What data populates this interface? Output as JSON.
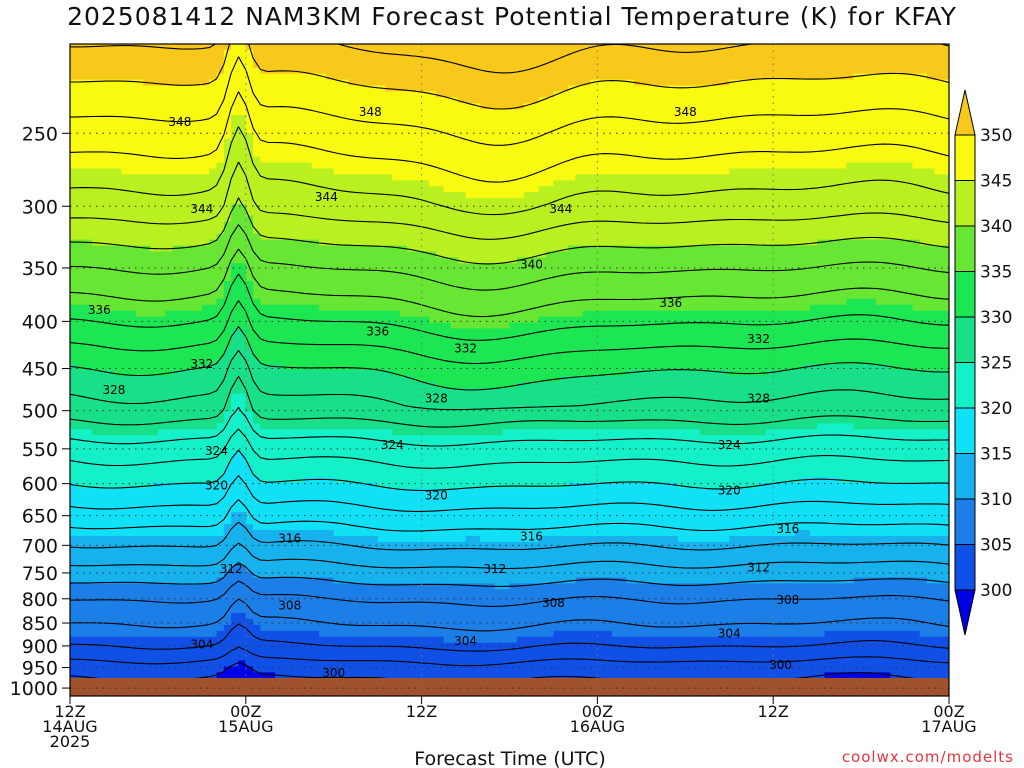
{
  "title": "2025081412 NAM3KM Forecast Potential Temperature (K) for KFAY",
  "watermark": "coolwx.com/modelts",
  "chart_data": {
    "type": "heatmap",
    "title": "2025081412 NAM3KM Forecast Potential Temperature (K) for KFAY",
    "xlabel": "Forecast Time (UTC)",
    "ylabel": "",
    "x_range_hours": [
      0,
      60
    ],
    "x_ticks": [
      {
        "hour": 0,
        "lines": [
          "12Z",
          "14AUG",
          "2025"
        ]
      },
      {
        "hour": 12,
        "lines": [
          "00Z",
          "15AUG"
        ]
      },
      {
        "hour": 24,
        "lines": [
          "12Z"
        ]
      },
      {
        "hour": 36,
        "lines": [
          "00Z",
          "16AUG"
        ]
      },
      {
        "hour": 48,
        "lines": [
          "12Z"
        ]
      },
      {
        "hour": 60,
        "lines": [
          "00Z",
          "17AUG"
        ]
      }
    ],
    "y_ticks": [
      250,
      300,
      350,
      400,
      450,
      500,
      550,
      600,
      650,
      700,
      750,
      800,
      850,
      900,
      950,
      1000
    ],
    "y_range_hpa": [
      1020,
      200
    ],
    "y_scale": "log",
    "grid": true,
    "colorbar": {
      "ticks": [
        300,
        305,
        310,
        315,
        320,
        325,
        330,
        335,
        340,
        345,
        350
      ],
      "min": 295,
      "max": 355,
      "colors": [
        "#0000e6",
        "#1050e6",
        "#1c7fe8",
        "#17b2ee",
        "#11e1f6",
        "#14f0c8",
        "#18e088",
        "#1ce652",
        "#68e634",
        "#b8f020",
        "#fafa10",
        "#f8c81a"
      ],
      "extend": "both"
    },
    "profiles": [
      {
        "p": 1000,
        "theta": 299
      },
      {
        "p": 950,
        "theta": 301
      },
      {
        "p": 900,
        "theta": 304
      },
      {
        "p": 850,
        "theta": 306
      },
      {
        "p": 800,
        "theta": 308
      },
      {
        "p": 750,
        "theta": 311
      },
      {
        "p": 700,
        "theta": 314
      },
      {
        "p": 650,
        "theta": 317
      },
      {
        "p": 600,
        "theta": 320
      },
      {
        "p": 550,
        "theta": 323
      },
      {
        "p": 500,
        "theta": 327
      },
      {
        "p": 450,
        "theta": 330
      },
      {
        "p": 400,
        "theta": 334
      },
      {
        "p": 350,
        "theta": 338
      },
      {
        "p": 300,
        "theta": 343
      },
      {
        "p": 250,
        "theta": 347
      },
      {
        "p": 200,
        "theta": 352
      }
    ],
    "contour_labels": [
      {
        "value": "348",
        "hour": 7.5,
        "p": 243
      },
      {
        "value": "348",
        "hour": 20.5,
        "p": 237
      },
      {
        "value": "348",
        "hour": 42.0,
        "p": 237
      },
      {
        "value": "344",
        "hour": 9.0,
        "p": 302
      },
      {
        "value": "344",
        "hour": 17.5,
        "p": 293
      },
      {
        "value": "344",
        "hour": 33.5,
        "p": 302
      },
      {
        "value": "340",
        "hour": 31.5,
        "p": 347
      },
      {
        "value": "336",
        "hour": 2.0,
        "p": 389
      },
      {
        "value": "336",
        "hour": 21.0,
        "p": 410
      },
      {
        "value": "336",
        "hour": 41.0,
        "p": 382
      },
      {
        "value": "332",
        "hour": 9.0,
        "p": 445
      },
      {
        "value": "332",
        "hour": 27.0,
        "p": 428
      },
      {
        "value": "332",
        "hour": 47.0,
        "p": 418
      },
      {
        "value": "328",
        "hour": 3.0,
        "p": 475
      },
      {
        "value": "328",
        "hour": 25.0,
        "p": 485
      },
      {
        "value": "328",
        "hour": 47.0,
        "p": 485
      },
      {
        "value": "324",
        "hour": 10.0,
        "p": 553
      },
      {
        "value": "324",
        "hour": 22.0,
        "p": 545
      },
      {
        "value": "324",
        "hour": 45.0,
        "p": 545
      },
      {
        "value": "320",
        "hour": 10.0,
        "p": 603
      },
      {
        "value": "320",
        "hour": 25.0,
        "p": 618
      },
      {
        "value": "320",
        "hour": 45.0,
        "p": 610
      },
      {
        "value": "316",
        "hour": 15.0,
        "p": 688
      },
      {
        "value": "316",
        "hour": 31.5,
        "p": 685
      },
      {
        "value": "316",
        "hour": 49.0,
        "p": 672
      },
      {
        "value": "312",
        "hour": 11.0,
        "p": 743
      },
      {
        "value": "312",
        "hour": 29.0,
        "p": 743
      },
      {
        "value": "312",
        "hour": 47.0,
        "p": 740
      },
      {
        "value": "308",
        "hour": 15.0,
        "p": 814
      },
      {
        "value": "308",
        "hour": 33.0,
        "p": 808
      },
      {
        "value": "308",
        "hour": 49.0,
        "p": 802
      },
      {
        "value": "304",
        "hour": 9.0,
        "p": 897
      },
      {
        "value": "304",
        "hour": 27.0,
        "p": 889
      },
      {
        "value": "304",
        "hour": 45.0,
        "p": 872
      },
      {
        "value": "300",
        "hour": 18.0,
        "p": 963
      },
      {
        "value": "300",
        "hour": 48.5,
        "p": 944
      }
    ]
  }
}
